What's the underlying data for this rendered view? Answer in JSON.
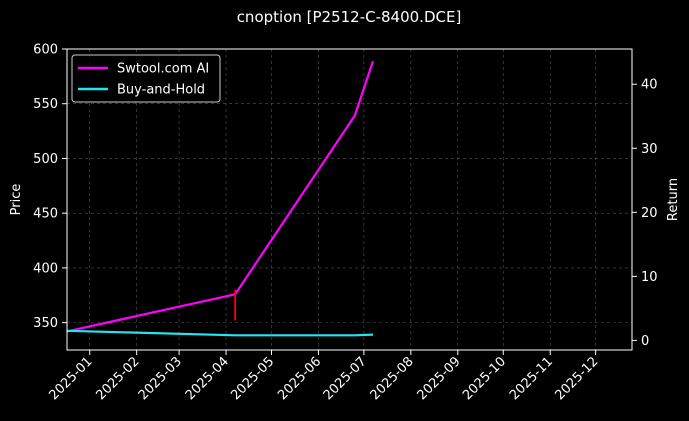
{
  "chart_data": {
    "type": "line",
    "title": "cnoption [P2512-C-8400.DCE]",
    "xlabel": "",
    "ylabel": "Price",
    "y2label": "Return",
    "ylim": [
      325,
      600
    ],
    "y2lim": [
      -1.5,
      45.5
    ],
    "xlim": [
      "2024-12-17",
      "2025-12-25"
    ],
    "grid": true,
    "legend_position": "top-left",
    "x_ticks": [
      "2025-01",
      "2025-02",
      "2025-03",
      "2025-04",
      "2025-05",
      "2025-06",
      "2025-07",
      "2025-08",
      "2025-09",
      "2025-10",
      "2025-11",
      "2025-12"
    ],
    "y_ticks": [
      "350",
      "400",
      "450",
      "500",
      "550",
      "600"
    ],
    "y2_ticks": [
      "0",
      "10",
      "20",
      "30",
      "40"
    ],
    "series": [
      {
        "name": "Swtool.com AI",
        "axis": "right",
        "color": "#ff00ff",
        "x": [
          "2024-12-17",
          "2025-04-07",
          "2025-06-25",
          "2025-07-07"
        ],
        "y": [
          1.4,
          7.2,
          35.1,
          43.6
        ]
      },
      {
        "name": "Buy-and-Hold",
        "axis": "right",
        "color": "#22e5f0",
        "x": [
          "2024-12-17",
          "2025-04-07",
          "2025-06-25",
          "2025-07-07"
        ],
        "y": [
          1.5,
          0.8,
          0.8,
          0.9
        ]
      }
    ],
    "markers": [
      {
        "x": "2025-04-07",
        "y_from": 352,
        "y_to": 380,
        "color": "#ff0000"
      }
    ]
  }
}
